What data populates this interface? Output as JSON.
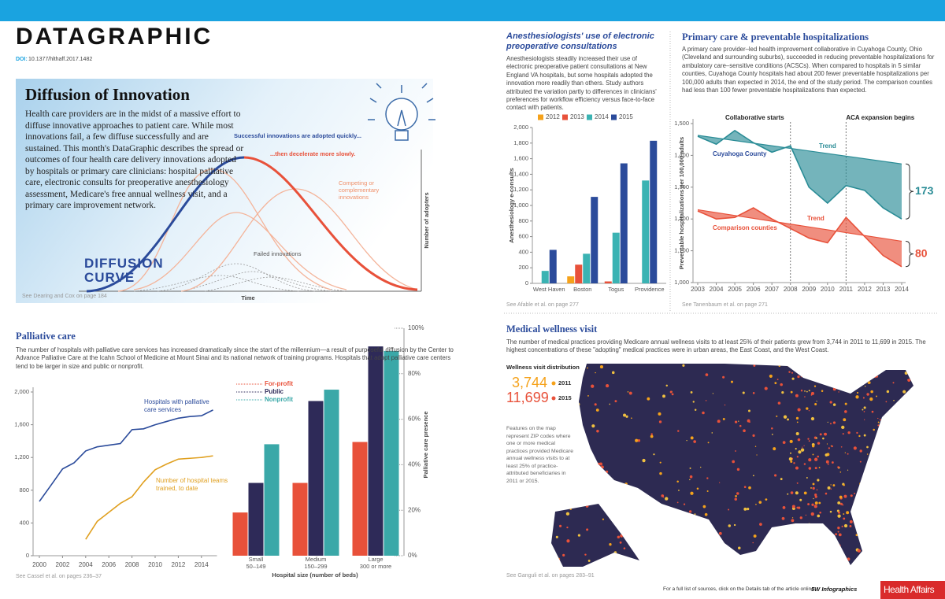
{
  "header": {
    "title": "DATAGRAPHIC",
    "doi_label": "DOI:",
    "doi": "10.1377/hlthaff.2017.1482"
  },
  "diffusion": {
    "title": "Diffusion of Innovation",
    "text": "Health care providers are in the midst of a massive effort to diffuse innovative approaches to patient care. While most innovations fail, a few diffuse successfully and are sustained. This month's DataGraphic describes the spread or outcomes of four health care delivery innovations adopted by hospitals or primary care clinicians: hospital palliative care, electronic consults for preoperative anesthesiology assessment, Medicare's free annual wellness visit, and a primary care improvement network.",
    "curve_label": "DIFFUSION CURVE",
    "successful": "Successful innovations are adopted quickly...",
    "decelerate": "...then decelerate more slowly.",
    "competing": "Competing or complementary innovations",
    "failed": "Failed innovations",
    "y_label": "Number of adopters",
    "x_label": "Time",
    "source": "See Dearing and Cox on page 184"
  },
  "chart_data": [
    {
      "type": "bar",
      "title": "Anesthesiologists' use of electronic preoperative consultations",
      "description": "Anesthesiologists steadily increased their use of electronic preoperative patient consultations at New England VA hospitals, but some hospitals adopted the innovation more readily than others. Study authors attributed the variation partly to differences in clinicians' preferences for workflow efficiency versus face-to-face contact with patients.",
      "y_label": "Anesthesiology e-consults",
      "categories": [
        "West Haven",
        "Boston",
        "Togus",
        "Providence"
      ],
      "series": [
        {
          "name": "2012",
          "color": "#f5a21b",
          "values": [
            null,
            90,
            null,
            null
          ]
        },
        {
          "name": "2013",
          "color": "#e8513a",
          "values": [
            null,
            240,
            25,
            null
          ]
        },
        {
          "name": "2014",
          "color": "#3bb3b3",
          "values": [
            160,
            380,
            650,
            1320
          ]
        },
        {
          "name": "2015",
          "color": "#2b4b9b",
          "values": [
            430,
            1110,
            1540,
            1830
          ]
        }
      ],
      "ylim": [
        0,
        2000
      ],
      "yticks": [
        0,
        200,
        400,
        600,
        800,
        {
          "value": 1000,
          "label": "1,000"
        },
        {
          "value": 1200,
          "label": "1,200"
        },
        {
          "value": 1400,
          "label": "1,400"
        },
        {
          "value": 1600,
          "label": "1,600"
        },
        {
          "value": 1800,
          "label": "1,800"
        },
        {
          "value": 2000,
          "label": "2,000"
        }
      ],
      "source": "See Afable et al. on page 277"
    },
    {
      "type": "line",
      "title": "Primary care & preventable hospitalizations",
      "description": "A primary care provider–led health improvement collaborative in Cuyahoga County, Ohio (Cleveland and surrounding suburbs), succeeded in reducing preventable hospitalizations for ambulatory care–sensitive conditions (ACSCs). When compared to hospitals in 5 similar counties, Cuyahoga County hospitals had about 200 fewer preventable hospitalizations per 100,000 adults than expected in 2014, the end of the study period. The comparison counties had less than 100 fewer preventable hospitalizations than expected.",
      "y_label": "Preventable hospitalizations per 100,000 adults",
      "x": [
        2003,
        2004,
        2005,
        2006,
        2007,
        2008,
        2009,
        2010,
        2011,
        2012,
        2013,
        2014
      ],
      "xlim": [
        2003,
        2014
      ],
      "xticks": [
        2003,
        2004,
        2005,
        2006,
        2007,
        2008,
        2009,
        2010,
        2011,
        2012,
        2013,
        2014
      ],
      "ylim": [
        1000,
        1500
      ],
      "yticks": [
        {
          "value": 1000,
          "label": "1,000"
        },
        {
          "value": 1100,
          "label": "1,100"
        },
        {
          "value": 1200,
          "label": "1,200"
        },
        {
          "value": 1300,
          "label": "1,300"
        },
        {
          "value": 1400,
          "label": "1,400"
        },
        {
          "value": 1500,
          "label": "1,500"
        }
      ],
      "series": [
        {
          "name": "Cuyahoga County",
          "color": "#2a8c96",
          "values": [
            1460,
            1435,
            1478,
            1440,
            1410,
            1430,
            1300,
            1250,
            1305,
            1290,
            1235,
            1200
          ],
          "trend": {
            "name": "Trend",
            "x": [
              2003,
              2014
            ],
            "values": [
              1463,
              1373
            ]
          },
          "gap_label": "173"
        },
        {
          "name": "Comparison counties",
          "color": "#e8513a",
          "values": [
            1225,
            1200,
            1205,
            1235,
            1200,
            1170,
            1140,
            1125,
            1205,
            1145,
            1085,
            1050
          ],
          "trend": {
            "name": "Trend",
            "x": [
              2003,
              2014
            ],
            "values": [
              1229,
              1130
            ]
          },
          "gap_label": "80"
        }
      ],
      "annotations": [
        {
          "text": "Collaborative starts",
          "x": 2008
        },
        {
          "text": "ACA expansion begins",
          "x": 2011
        }
      ],
      "source": "See Tanenbaum et al. on page 271"
    },
    {
      "type": "line",
      "title": "Palliative care",
      "description": "The number of hospitals with palliative care services has increased dramatically since the start of the millennium—a result of purposeful diffusion by the Center to Advance Palliative Care at the Icahn School of Medicine at Mount Sinai and its national network of training programs. Hospitals that adopt palliative care centers tend to be larger in size and public or nonprofit.",
      "x": [
        2000,
        2001,
        2002,
        2003,
        2004,
        2005,
        2006,
        2007,
        2008,
        2009,
        2010,
        2011,
        2012,
        2013,
        2014,
        2015
      ],
      "xlim": [
        2000,
        2015
      ],
      "xticks": [
        2000,
        2002,
        2004,
        2006,
        2008,
        2010,
        2012,
        2014
      ],
      "ylim": [
        0,
        2000
      ],
      "yticks": [
        0,
        400,
        800,
        {
          "value": 1200,
          "label": "1,200"
        },
        {
          "value": 1600,
          "label": "1,600"
        },
        {
          "value": 2000,
          "label": "2,000"
        }
      ],
      "series": [
        {
          "name": "Hospitals with palliative care services",
          "color": "#2b4b9b",
          "values": [
            663,
            860,
            1060,
            1135,
            1280,
            1330,
            1350,
            1370,
            1540,
            1550,
            1600,
            1640,
            1680,
            1700,
            1710,
            1780
          ]
        },
        {
          "name": "Number of hospital teams trained, to date",
          "color": "#e0a020",
          "values": [
            null,
            null,
            null,
            null,
            200,
            420,
            530,
            640,
            720,
            900,
            1050,
            1120,
            1180,
            1190,
            1200,
            1220
          ]
        }
      ],
      "source": "See Cassel et al. on pages 236–37"
    },
    {
      "type": "bar",
      "x_label": "Hospital size (number of beds)",
      "y_label": "Palliative care presence",
      "categories": [
        "Small",
        "Medium",
        "Large"
      ],
      "category_sublabels": [
        "50–149",
        "150–299",
        "300 or more"
      ],
      "series": [
        {
          "name": "For-profit",
          "color": "#e8513a",
          "values": [
            19,
            32,
            50
          ]
        },
        {
          "name": "Public",
          "color": "#2e2a58",
          "values": [
            32,
            68,
            92
          ]
        },
        {
          "name": "Nonprofit",
          "color": "#3aa8a8",
          "values": [
            49,
            73,
            90
          ]
        }
      ],
      "ylim": [
        0,
        100
      ],
      "yticks": [
        {
          "value": 0,
          "label": "0%"
        },
        {
          "value": 20,
          "label": "20%"
        },
        {
          "value": 40,
          "label": "40%"
        },
        {
          "value": 60,
          "label": "60%"
        },
        {
          "value": 80,
          "label": "80%"
        },
        {
          "value": 100,
          "label": "100%"
        }
      ]
    }
  ],
  "wellness": {
    "title": "Medical wellness visit",
    "text": "The number of medical practices providing Medicare annual wellness visits to at least 25% of their patients grew from 3,744 in 2011 to 11,699 in 2015. The highest concentrations of these \"adopting\" medical practices were in urban areas, the East Coast, and the West Coast.",
    "legend_title": "Wellness visit distribution",
    "count_2011": "3,744",
    "year_2011": "2011",
    "count_2015": "11,699",
    "year_2015": "2015",
    "note": "Features on the map represent ZIP codes where one or more medical practices provided Medicare annual wellness visits to at least 25% of practice-attributed beneficiaries in 2011 or 2015.",
    "source": "See Ganguli et al. on pages 283–91"
  },
  "footer": {
    "note": "For a full list of sources, click on the Details tab of the article online.",
    "credit": "5W Infographics",
    "brand": "Health Affairs"
  }
}
